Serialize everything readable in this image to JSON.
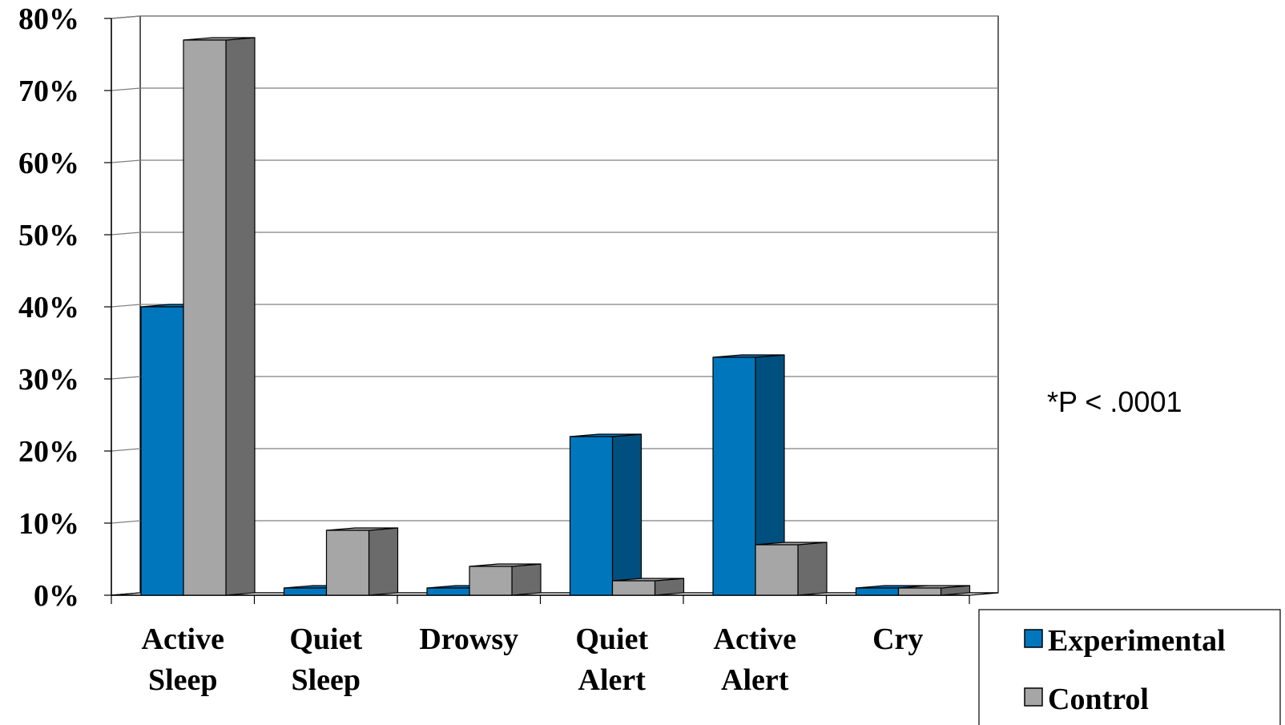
{
  "chart_data": {
    "type": "bar",
    "categories": [
      [
        "Active",
        "Sleep"
      ],
      [
        "Quiet",
        "Sleep"
      ],
      [
        "Drowsy"
      ],
      [
        "Quiet",
        "Alert"
      ],
      [
        "Active",
        "Alert"
      ],
      [
        "Cry"
      ]
    ],
    "series": [
      {
        "name": "Experimental",
        "values": [
          40,
          1,
          1,
          22,
          33,
          1
        ],
        "color": "#0077bd",
        "side_color": "#00507f"
      },
      {
        "name": "Control",
        "values": [
          77,
          9,
          4,
          2,
          7,
          1
        ],
        "color": "#a6a6a6",
        "side_color": "#6b6b6b"
      }
    ],
    "yticks": [
      "0%",
      "10%",
      "20%",
      "30%",
      "40%",
      "50%",
      "60%",
      "70%",
      "80%"
    ],
    "ylim": [
      0,
      80
    ],
    "grid": true,
    "legend_position": "bottom-right",
    "annotation": "*P < .0001",
    "style_3d": true
  }
}
